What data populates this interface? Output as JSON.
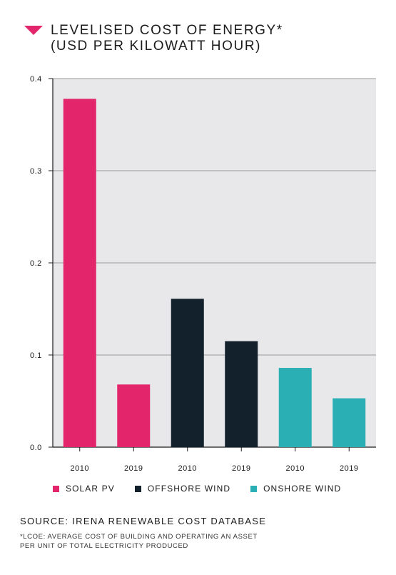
{
  "header": {
    "title_line1": "LEVELISED COST OF ENERGY*",
    "title_line2": "(USD PER KILOWATT HOUR)"
  },
  "colors": {
    "accent": "#e3256b",
    "solar": "#e3256b",
    "offshore": "#13212d",
    "onshore": "#2aafb5",
    "plot_bg": "#e8e8ea",
    "grid": "#9a9a9a"
  },
  "legend": [
    {
      "label": "SOLAR PV",
      "color": "#e3256b"
    },
    {
      "label": "OFFSHORE WIND",
      "color": "#13212d"
    },
    {
      "label": "ONSHORE WIND",
      "color": "#2aafb5"
    }
  ],
  "source": "SOURCE: IRENA RENEWABLE COST DATABASE",
  "footnote_line1": "*LCOE: AVERAGE COST OF BUILDING AND OPERATING AN ASSET",
  "footnote_line2": "PER UNIT OF TOTAL ELECTRICITY PRODUCED",
  "chart_data": {
    "type": "bar",
    "categories": [
      "2010",
      "2019",
      "2010",
      "2019",
      "2010",
      "2019"
    ],
    "groups": [
      "SOLAR PV",
      "SOLAR PV",
      "OFFSHORE WIND",
      "OFFSHORE WIND",
      "ONSHORE WIND",
      "ONSHORE WIND"
    ],
    "values": [
      0.378,
      0.068,
      0.161,
      0.115,
      0.086,
      0.053
    ],
    "bar_colors": [
      "#e3256b",
      "#e3256b",
      "#13212d",
      "#13212d",
      "#2aafb5",
      "#2aafb5"
    ],
    "yticks": [
      "0.0",
      "0.1",
      "0.2",
      "0.3",
      "0.4"
    ],
    "ylim": [
      0,
      0.4
    ],
    "grid": true,
    "legend_position": "bottom"
  }
}
